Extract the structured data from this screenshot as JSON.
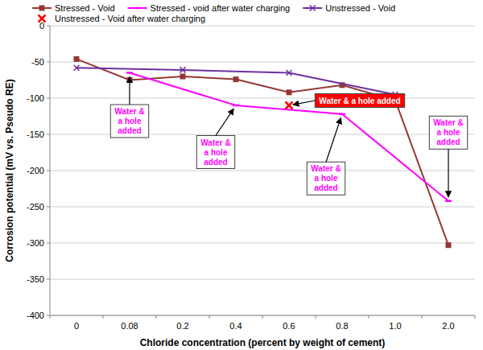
{
  "chart_data": {
    "type": "line",
    "x_label": "Chloride concentration (percent by weight of cement)",
    "y_label": "Corrosion potential (mV vs. Pseudo RE)",
    "categories": [
      "0",
      "0.08",
      "0.2",
      "0.4",
      "0.6",
      "0.8",
      "1.0",
      "2.0"
    ],
    "ylim": [
      -400,
      0
    ],
    "yticks": [
      -400,
      -350,
      -300,
      -250,
      -200,
      -150,
      -100,
      -50,
      0
    ],
    "grid": true,
    "legend": "top",
    "series": [
      {
        "name": "Stressed - Void",
        "color": "#953735",
        "marker": "square",
        "line_style": "solid",
        "values": [
          -46,
          -75,
          -70,
          -74,
          -92,
          -82,
          -103,
          -303
        ]
      },
      {
        "name": "Stressed - void after water charging",
        "color": "#ff00ff",
        "marker": "dash",
        "line_style": "solid",
        "x": [
          "0.08",
          "0.4",
          "0.8",
          "2.0"
        ],
        "values": [
          -65,
          -110,
          -122,
          -242
        ]
      },
      {
        "name": "Unstressed - Void",
        "color": "#7030a0",
        "marker": "x",
        "line_style": "solid",
        "x": [
          "0",
          "0.2",
          "0.6",
          "1.0"
        ],
        "values": [
          -58,
          -61,
          -65,
          -95
        ]
      },
      {
        "name": "Unstressed - Void after water charging",
        "color": "#ff0000",
        "marker": "x",
        "line_style": "none",
        "x": [
          "0.6"
        ],
        "values": [
          -110
        ]
      }
    ],
    "annotations": [
      {
        "text": "Water & a hole added",
        "x": "0.08",
        "y": -65,
        "color": "#ff00ff"
      },
      {
        "text": "Water & a hole added",
        "x": "0.4",
        "y": -110,
        "color": "#ff00ff"
      },
      {
        "text": "Water & a hole added",
        "x": "0.8",
        "y": -122,
        "color": "#ff00ff"
      },
      {
        "text": "Water & a hole added",
        "x": "2.0",
        "y": -242,
        "color": "#ff00ff"
      },
      {
        "text": "Water & a hole added",
        "x": "0.6",
        "y": -110,
        "color": "#ff0000"
      }
    ]
  }
}
